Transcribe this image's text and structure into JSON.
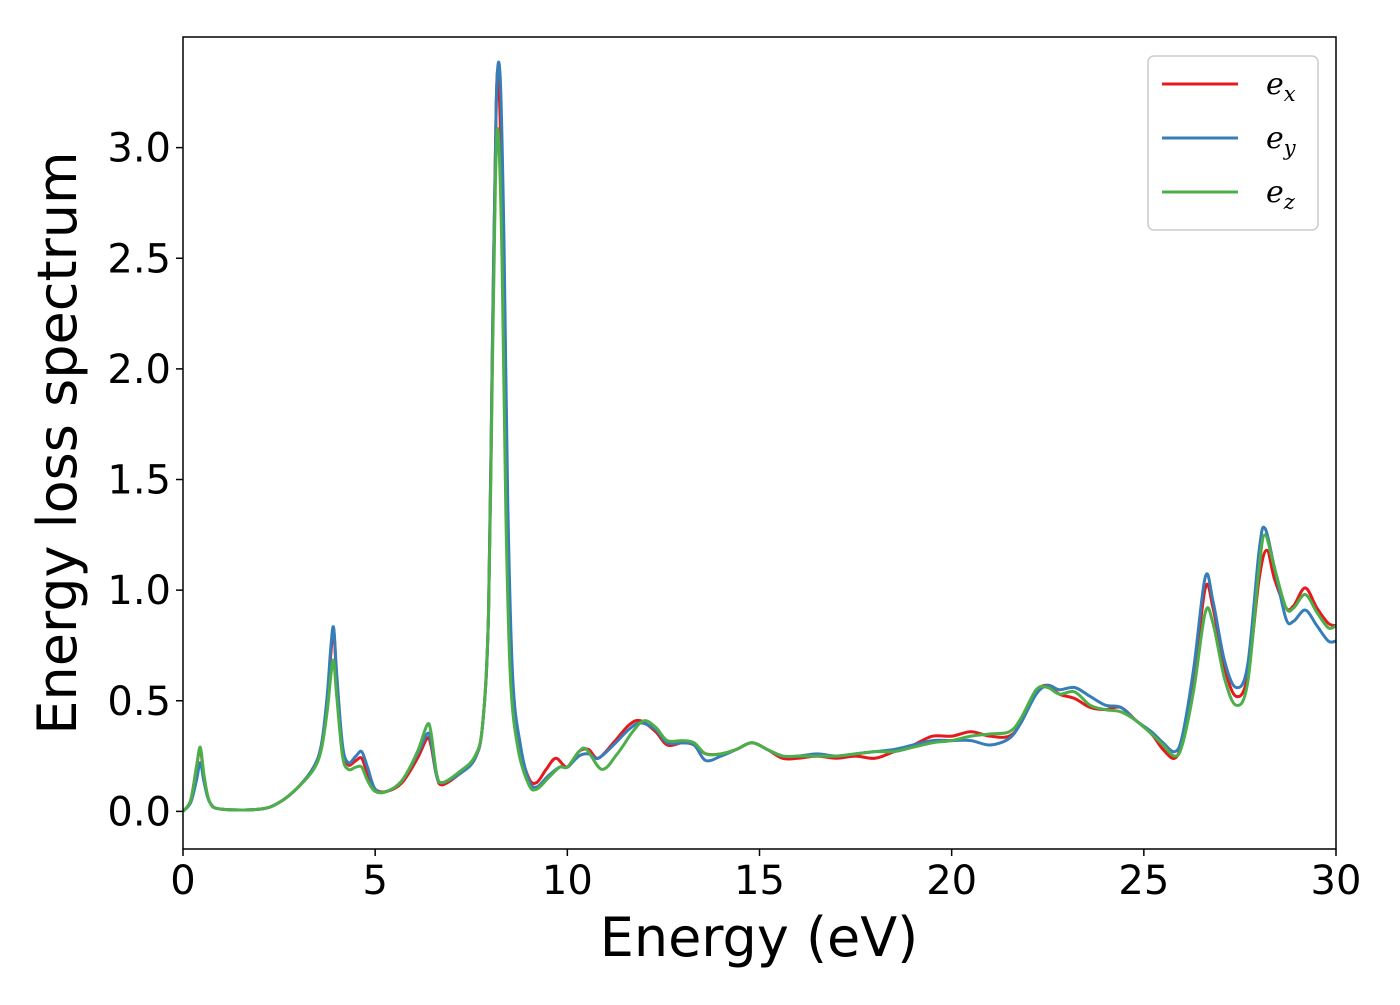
{
  "chart_data": {
    "type": "line",
    "xlabel": "Energy (eV)",
    "ylabel": "Energy loss spectrum",
    "xlim": [
      0,
      30
    ],
    "ylim": [
      -0.17,
      3.5
    ],
    "xticks": [
      0,
      5,
      10,
      15,
      20,
      25,
      30
    ],
    "xtick_labels": [
      "0",
      "5",
      "10",
      "15",
      "20",
      "25",
      "30"
    ],
    "yticks": [
      0.0,
      0.5,
      1.0,
      1.5,
      2.0,
      2.5,
      3.0
    ],
    "ytick_labels": [
      "0.0",
      "0.5",
      "1.0",
      "1.5",
      "2.0",
      "2.5",
      "3.0"
    ],
    "grid": false,
    "legend_position": "top-right",
    "series": [
      {
        "name": "e_x",
        "label_base": "e",
        "label_sub": "x",
        "color": "#e41a1c",
        "points": [
          [
            0,
            0
          ],
          [
            0.2,
            0.05
          ],
          [
            0.35,
            0.2
          ],
          [
            0.45,
            0.28
          ],
          [
            0.55,
            0.15
          ],
          [
            0.7,
            0.04
          ],
          [
            1,
            0.01
          ],
          [
            2,
            0.01
          ],
          [
            2.5,
            0.04
          ],
          [
            3,
            0.11
          ],
          [
            3.4,
            0.2
          ],
          [
            3.6,
            0.3
          ],
          [
            3.75,
            0.5
          ],
          [
            3.85,
            0.72
          ],
          [
            3.92,
            0.82
          ],
          [
            4.0,
            0.6
          ],
          [
            4.15,
            0.28
          ],
          [
            4.3,
            0.21
          ],
          [
            4.5,
            0.23
          ],
          [
            4.65,
            0.24
          ],
          [
            4.8,
            0.17
          ],
          [
            5.0,
            0.1
          ],
          [
            5.3,
            0.09
          ],
          [
            5.7,
            0.13
          ],
          [
            6.1,
            0.24
          ],
          [
            6.35,
            0.33
          ],
          [
            6.45,
            0.3
          ],
          [
            6.6,
            0.16
          ],
          [
            6.75,
            0.12
          ],
          [
            7.2,
            0.17
          ],
          [
            7.6,
            0.24
          ],
          [
            7.8,
            0.4
          ],
          [
            7.95,
            0.9
          ],
          [
            8.05,
            2.1
          ],
          [
            8.15,
            3.2
          ],
          [
            8.22,
            3.28
          ],
          [
            8.32,
            2.6
          ],
          [
            8.42,
            1.4
          ],
          [
            8.55,
            0.6
          ],
          [
            8.75,
            0.3
          ],
          [
            9.0,
            0.15
          ],
          [
            9.2,
            0.13
          ],
          [
            9.45,
            0.19
          ],
          [
            9.7,
            0.24
          ],
          [
            10.0,
            0.2
          ],
          [
            10.3,
            0.27
          ],
          [
            10.55,
            0.28
          ],
          [
            10.8,
            0.24
          ],
          [
            11.2,
            0.31
          ],
          [
            11.6,
            0.39
          ],
          [
            11.9,
            0.41
          ],
          [
            12.3,
            0.36
          ],
          [
            12.6,
            0.3
          ],
          [
            13.0,
            0.31
          ],
          [
            13.3,
            0.3
          ],
          [
            13.6,
            0.26
          ],
          [
            14.0,
            0.26
          ],
          [
            14.4,
            0.28
          ],
          [
            14.8,
            0.31
          ],
          [
            15.2,
            0.28
          ],
          [
            15.6,
            0.24
          ],
          [
            16.0,
            0.24
          ],
          [
            16.5,
            0.25
          ],
          [
            17.0,
            0.24
          ],
          [
            17.5,
            0.25
          ],
          [
            18.0,
            0.24
          ],
          [
            18.5,
            0.27
          ],
          [
            19.0,
            0.3
          ],
          [
            19.5,
            0.34
          ],
          [
            20.0,
            0.34
          ],
          [
            20.5,
            0.36
          ],
          [
            21.0,
            0.34
          ],
          [
            21.5,
            0.34
          ],
          [
            21.8,
            0.4
          ],
          [
            22.2,
            0.54
          ],
          [
            22.5,
            0.57
          ],
          [
            22.8,
            0.53
          ],
          [
            23.2,
            0.51
          ],
          [
            23.6,
            0.47
          ],
          [
            24.0,
            0.46
          ],
          [
            24.4,
            0.47
          ],
          [
            24.8,
            0.41
          ],
          [
            25.2,
            0.35
          ],
          [
            25.5,
            0.28
          ],
          [
            25.8,
            0.24
          ],
          [
            26.0,
            0.32
          ],
          [
            26.3,
            0.6
          ],
          [
            26.6,
            1.01
          ],
          [
            26.8,
            0.92
          ],
          [
            27.1,
            0.65
          ],
          [
            27.4,
            0.52
          ],
          [
            27.7,
            0.61
          ],
          [
            28.0,
            1.05
          ],
          [
            28.2,
            1.18
          ],
          [
            28.4,
            1.05
          ],
          [
            28.7,
            0.92
          ],
          [
            28.9,
            0.93
          ],
          [
            29.2,
            1.01
          ],
          [
            29.5,
            0.92
          ],
          [
            29.8,
            0.85
          ],
          [
            30.0,
            0.84
          ]
        ]
      },
      {
        "name": "e_y",
        "label_base": "e",
        "label_sub": "y",
        "color": "#377eb8",
        "points": [
          [
            0,
            0
          ],
          [
            0.2,
            0.04
          ],
          [
            0.35,
            0.14
          ],
          [
            0.45,
            0.22
          ],
          [
            0.55,
            0.13
          ],
          [
            0.7,
            0.04
          ],
          [
            1,
            0.01
          ],
          [
            2,
            0.01
          ],
          [
            2.5,
            0.04
          ],
          [
            3,
            0.11
          ],
          [
            3.4,
            0.2
          ],
          [
            3.6,
            0.3
          ],
          [
            3.75,
            0.52
          ],
          [
            3.85,
            0.75
          ],
          [
            3.92,
            0.83
          ],
          [
            4.0,
            0.62
          ],
          [
            4.15,
            0.3
          ],
          [
            4.3,
            0.22
          ],
          [
            4.5,
            0.25
          ],
          [
            4.65,
            0.27
          ],
          [
            4.8,
            0.2
          ],
          [
            5.0,
            0.1
          ],
          [
            5.3,
            0.09
          ],
          [
            5.7,
            0.14
          ],
          [
            6.1,
            0.26
          ],
          [
            6.35,
            0.35
          ],
          [
            6.45,
            0.32
          ],
          [
            6.6,
            0.16
          ],
          [
            6.75,
            0.13
          ],
          [
            7.2,
            0.17
          ],
          [
            7.6,
            0.24
          ],
          [
            7.8,
            0.4
          ],
          [
            7.95,
            0.9
          ],
          [
            8.05,
            2.1
          ],
          [
            8.15,
            3.2
          ],
          [
            8.25,
            3.33
          ],
          [
            8.35,
            2.6
          ],
          [
            8.45,
            1.4
          ],
          [
            8.58,
            0.6
          ],
          [
            8.78,
            0.3
          ],
          [
            9.0,
            0.14
          ],
          [
            9.2,
            0.11
          ],
          [
            9.5,
            0.16
          ],
          [
            9.8,
            0.2
          ],
          [
            10.0,
            0.2
          ],
          [
            10.3,
            0.25
          ],
          [
            10.55,
            0.26
          ],
          [
            10.8,
            0.24
          ],
          [
            11.2,
            0.3
          ],
          [
            11.6,
            0.37
          ],
          [
            11.9,
            0.4
          ],
          [
            12.3,
            0.37
          ],
          [
            12.6,
            0.31
          ],
          [
            13.0,
            0.31
          ],
          [
            13.3,
            0.3
          ],
          [
            13.6,
            0.23
          ],
          [
            14.0,
            0.25
          ],
          [
            14.4,
            0.28
          ],
          [
            14.8,
            0.31
          ],
          [
            15.2,
            0.28
          ],
          [
            15.6,
            0.25
          ],
          [
            16.0,
            0.25
          ],
          [
            16.5,
            0.26
          ],
          [
            17.0,
            0.25
          ],
          [
            17.5,
            0.26
          ],
          [
            18.0,
            0.27
          ],
          [
            18.5,
            0.28
          ],
          [
            19.0,
            0.3
          ],
          [
            19.5,
            0.32
          ],
          [
            20.0,
            0.32
          ],
          [
            20.5,
            0.32
          ],
          [
            21.0,
            0.3
          ],
          [
            21.5,
            0.33
          ],
          [
            21.8,
            0.4
          ],
          [
            22.2,
            0.53
          ],
          [
            22.5,
            0.57
          ],
          [
            22.8,
            0.55
          ],
          [
            23.2,
            0.56
          ],
          [
            23.6,
            0.52
          ],
          [
            24.0,
            0.48
          ],
          [
            24.4,
            0.47
          ],
          [
            24.8,
            0.41
          ],
          [
            25.2,
            0.36
          ],
          [
            25.5,
            0.31
          ],
          [
            25.8,
            0.27
          ],
          [
            26.0,
            0.34
          ],
          [
            26.3,
            0.65
          ],
          [
            26.6,
            1.06
          ],
          [
            26.8,
            0.95
          ],
          [
            27.1,
            0.68
          ],
          [
            27.4,
            0.56
          ],
          [
            27.7,
            0.66
          ],
          [
            28.0,
            1.18
          ],
          [
            28.15,
            1.28
          ],
          [
            28.4,
            1.1
          ],
          [
            28.7,
            0.87
          ],
          [
            28.9,
            0.86
          ],
          [
            29.2,
            0.91
          ],
          [
            29.5,
            0.84
          ],
          [
            29.8,
            0.77
          ],
          [
            30.0,
            0.77
          ]
        ]
      },
      {
        "name": "e_z",
        "label_base": "e",
        "label_sub": "z",
        "color": "#4daf4a",
        "points": [
          [
            0,
            0
          ],
          [
            0.2,
            0.05
          ],
          [
            0.35,
            0.2
          ],
          [
            0.45,
            0.29
          ],
          [
            0.55,
            0.16
          ],
          [
            0.7,
            0.04
          ],
          [
            1,
            0.01
          ],
          [
            2,
            0.01
          ],
          [
            2.5,
            0.04
          ],
          [
            3,
            0.11
          ],
          [
            3.4,
            0.19
          ],
          [
            3.6,
            0.28
          ],
          [
            3.75,
            0.45
          ],
          [
            3.85,
            0.62
          ],
          [
            3.92,
            0.68
          ],
          [
            4.0,
            0.52
          ],
          [
            4.15,
            0.25
          ],
          [
            4.3,
            0.19
          ],
          [
            4.5,
            0.2
          ],
          [
            4.65,
            0.2
          ],
          [
            4.8,
            0.14
          ],
          [
            5.0,
            0.09
          ],
          [
            5.3,
            0.09
          ],
          [
            5.7,
            0.14
          ],
          [
            6.1,
            0.27
          ],
          [
            6.35,
            0.39
          ],
          [
            6.45,
            0.36
          ],
          [
            6.6,
            0.17
          ],
          [
            6.75,
            0.13
          ],
          [
            7.2,
            0.18
          ],
          [
            7.6,
            0.25
          ],
          [
            7.8,
            0.4
          ],
          [
            7.95,
            0.9
          ],
          [
            8.05,
            2.0
          ],
          [
            8.13,
            2.85
          ],
          [
            8.2,
            3.07
          ],
          [
            8.3,
            2.5
          ],
          [
            8.4,
            1.35
          ],
          [
            8.52,
            0.6
          ],
          [
            8.72,
            0.28
          ],
          [
            9.0,
            0.12
          ],
          [
            9.2,
            0.1
          ],
          [
            9.5,
            0.15
          ],
          [
            9.8,
            0.2
          ],
          [
            10.0,
            0.2
          ],
          [
            10.3,
            0.27
          ],
          [
            10.5,
            0.28
          ],
          [
            10.9,
            0.19
          ],
          [
            11.3,
            0.26
          ],
          [
            11.7,
            0.36
          ],
          [
            12.0,
            0.41
          ],
          [
            12.3,
            0.38
          ],
          [
            12.6,
            0.32
          ],
          [
            13.0,
            0.32
          ],
          [
            13.3,
            0.31
          ],
          [
            13.6,
            0.26
          ],
          [
            14.0,
            0.26
          ],
          [
            14.4,
            0.28
          ],
          [
            14.8,
            0.31
          ],
          [
            15.2,
            0.28
          ],
          [
            15.6,
            0.25
          ],
          [
            16.0,
            0.25
          ],
          [
            16.5,
            0.25
          ],
          [
            17.0,
            0.25
          ],
          [
            17.5,
            0.26
          ],
          [
            18.0,
            0.27
          ],
          [
            18.5,
            0.27
          ],
          [
            19.0,
            0.29
          ],
          [
            19.5,
            0.31
          ],
          [
            20.0,
            0.32
          ],
          [
            20.5,
            0.34
          ],
          [
            21.0,
            0.35
          ],
          [
            21.5,
            0.36
          ],
          [
            21.8,
            0.42
          ],
          [
            22.2,
            0.55
          ],
          [
            22.5,
            0.56
          ],
          [
            22.8,
            0.53
          ],
          [
            23.2,
            0.54
          ],
          [
            23.6,
            0.48
          ],
          [
            24.0,
            0.46
          ],
          [
            24.4,
            0.45
          ],
          [
            24.8,
            0.41
          ],
          [
            25.2,
            0.35
          ],
          [
            25.5,
            0.3
          ],
          [
            25.8,
            0.25
          ],
          [
            26.0,
            0.3
          ],
          [
            26.3,
            0.55
          ],
          [
            26.6,
            0.9
          ],
          [
            26.8,
            0.85
          ],
          [
            27.1,
            0.6
          ],
          [
            27.4,
            0.48
          ],
          [
            27.7,
            0.58
          ],
          [
            28.0,
            1.1
          ],
          [
            28.15,
            1.25
          ],
          [
            28.4,
            1.1
          ],
          [
            28.7,
            0.92
          ],
          [
            28.9,
            0.92
          ],
          [
            29.2,
            0.98
          ],
          [
            29.5,
            0.9
          ],
          [
            29.8,
            0.83
          ],
          [
            30.0,
            0.84
          ]
        ]
      }
    ]
  }
}
